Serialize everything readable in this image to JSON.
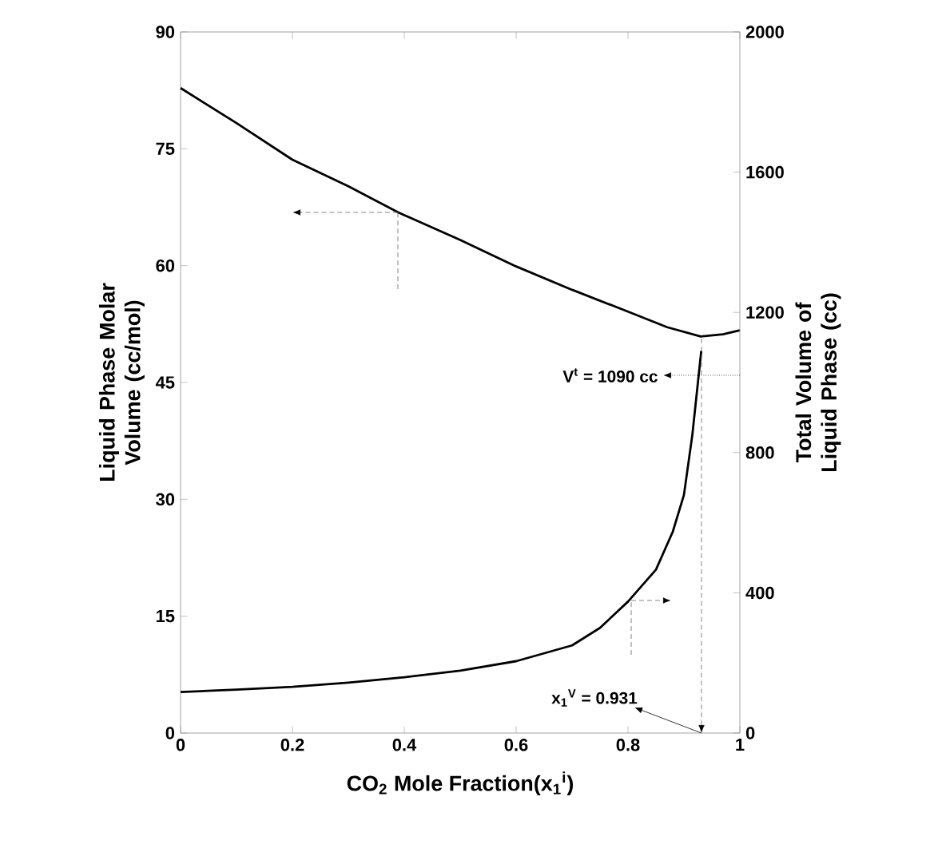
{
  "chart_data": {
    "type": "line",
    "xlabel": "CO$_{2}$ Mole Fraction(x$_{1}$$^{i}$)",
    "ylabel": "Liquid Phase Molar Volume (cc/mol)",
    "y2label": "Total Volume of Liquid Phase (cc)",
    "xlim": [
      0,
      1
    ],
    "xticks": [
      0,
      0.2,
      0.4,
      0.6,
      0.8,
      1
    ],
    "ylim": [
      0,
      90
    ],
    "yticks": [
      0,
      15,
      30,
      45,
      60,
      75,
      90
    ],
    "y2lim": [
      0,
      2000
    ],
    "y2ticks": [
      0,
      400,
      800,
      1200,
      1600,
      2000
    ],
    "annotations": [
      "V$^{t}$ = 1090 cc",
      "x$_{1}$$^{V}$ = 0.931"
    ],
    "series": [
      {
        "color": "#000000",
        "x": [
          0,
          0.1,
          0.2,
          0.3,
          0.39,
          0.5,
          0.6,
          0.7,
          0.8,
          0.87,
          0.93,
          0.97,
          1
        ],
        "values": [
          82.8,
          78.3,
          73.6,
          70.2,
          66.8,
          63.3,
          59.9,
          56.9,
          54.1,
          52.1,
          50.9,
          51.2,
          51.7
        ]
      },
      {
        "color": "#000000",
        "axis": "y2",
        "x": [
          0,
          0.1,
          0.2,
          0.3,
          0.4,
          0.5,
          0.6,
          0.7,
          0.75,
          0.8,
          0.85,
          0.88,
          0.9,
          0.915,
          0.931
        ],
        "values": [
          117,
          124,
          132,
          144,
          159,
          178,
          205,
          250,
          300,
          375,
          466,
          574,
          679,
          850,
          1090
        ]
      }
    ]
  }
}
